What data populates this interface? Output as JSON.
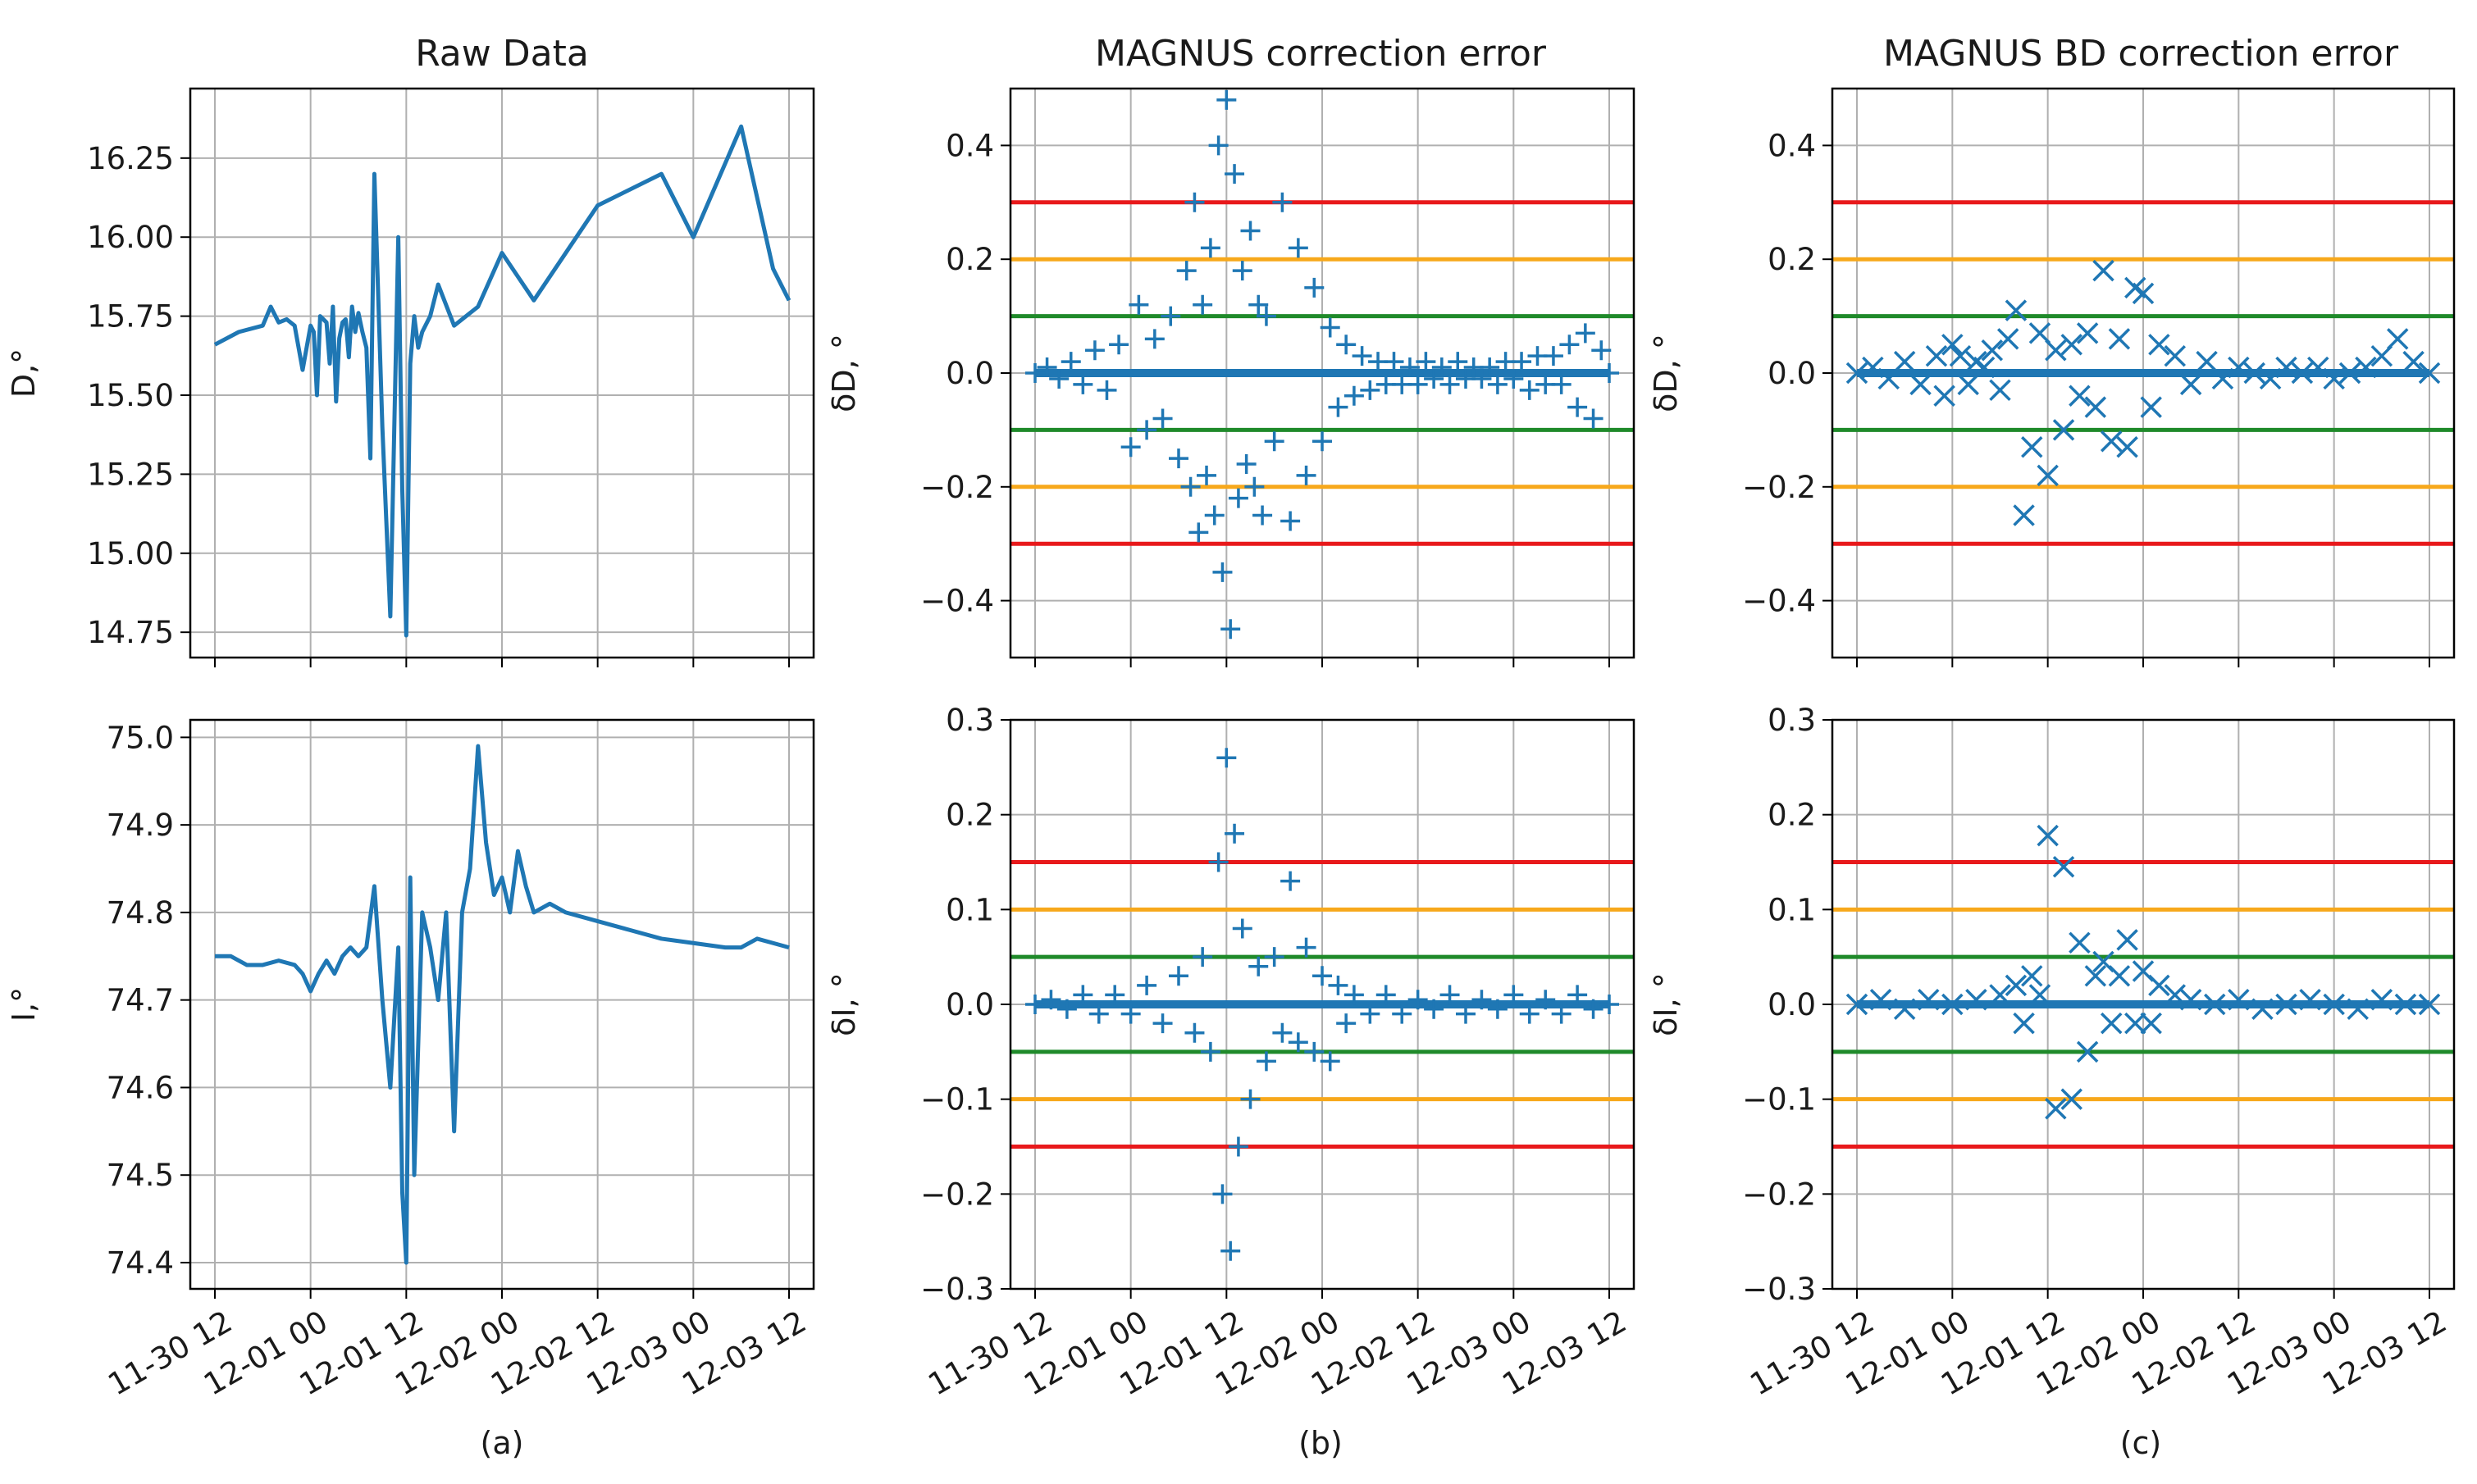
{
  "figure": {
    "time_tick_labels": [
      "11-30 12",
      "12-01 00",
      "12-01 12",
      "12-02 00",
      "12-02 12",
      "12-03 00",
      "12-03 12"
    ],
    "threshold_colors": {
      "red": "#e8191b",
      "orange": "#f7a81b",
      "green": "#1f8a2a"
    },
    "series_color": "#1f77b4",
    "grid_color": "#b0b0b0"
  },
  "chart_data": [
    {
      "id": "a1",
      "type": "line",
      "title": "Raw Data",
      "xlabel": "",
      "ylabel": "D,°",
      "ylim": [
        14.67,
        16.47
      ],
      "yticks": [
        14.75,
        15.0,
        15.25,
        15.5,
        15.75,
        16.0,
        16.25
      ],
      "ytick_labels": [
        "14.75",
        "15.00",
        "15.25",
        "15.50",
        "15.75",
        "16.00",
        "16.25"
      ],
      "series": [
        {
          "name": "D",
          "x": [
            0,
            3,
            6,
            7,
            8,
            9,
            10,
            11,
            11.5,
            12,
            12.4,
            12.8,
            13.2,
            13.6,
            14,
            14.4,
            14.8,
            15.2,
            15.6,
            16,
            16.4,
            16.8,
            17.2,
            17.6,
            18,
            18.5,
            19,
            19.5,
            20,
            21,
            22,
            23,
            23.5,
            24,
            24.5,
            25,
            25.5,
            26,
            27,
            28,
            30,
            33,
            36,
            40,
            48,
            56,
            60,
            66,
            70,
            72
          ],
          "y": [
            15.66,
            15.7,
            15.72,
            15.78,
            15.73,
            15.74,
            15.72,
            15.58,
            15.65,
            15.72,
            15.7,
            15.5,
            15.75,
            15.74,
            15.73,
            15.6,
            15.78,
            15.48,
            15.68,
            15.73,
            15.74,
            15.62,
            15.78,
            15.7,
            15.76,
            15.7,
            15.65,
            15.3,
            16.2,
            15.4,
            14.8,
            16.0,
            15.2,
            14.74,
            15.6,
            15.75,
            15.65,
            15.7,
            15.75,
            15.85,
            15.72,
            15.78,
            15.95,
            15.8,
            16.1,
            16.2,
            16.0,
            16.35,
            15.9,
            15.8
          ]
        }
      ]
    },
    {
      "id": "b1",
      "type": "scatter",
      "marker": "plus",
      "title": "MAGNUS correction error",
      "xlabel": "",
      "ylabel": "δD, °",
      "ylim": [
        -0.5,
        0.5
      ],
      "yticks": [
        -0.4,
        -0.2,
        0.0,
        0.2,
        0.4
      ],
      "ytick_labels": [
        "−0.4",
        "−0.2",
        "0.0",
        "0.2",
        "0.4"
      ],
      "thresholds": [
        0.3,
        0.2,
        0.1,
        -0.1,
        -0.2,
        -0.3
      ],
      "series": [
        {
          "name": "δD",
          "x": [
            0,
            1.5,
            3,
            4.5,
            6,
            7.5,
            9,
            10.5,
            12,
            13,
            14,
            15,
            16,
            17,
            18,
            19,
            19.5,
            20,
            20.5,
            21,
            21.5,
            22,
            22.5,
            23,
            23.5,
            24,
            24.5,
            25,
            25.5,
            26,
            26.5,
            27,
            27.5,
            28,
            28.5,
            29,
            30,
            31,
            32,
            33,
            34,
            35,
            36,
            37,
            38,
            39,
            40,
            41,
            42,
            43,
            44,
            45,
            46,
            47,
            48,
            49,
            50,
            51,
            52,
            53,
            54,
            55,
            56,
            57,
            58,
            59,
            60,
            61,
            62,
            63,
            64,
            65,
            66,
            67,
            68,
            69,
            70,
            71,
            72
          ],
          "y": [
            0.0,
            0.01,
            -0.01,
            0.02,
            -0.02,
            0.04,
            -0.03,
            0.05,
            -0.13,
            0.12,
            -0.1,
            0.06,
            -0.08,
            0.1,
            -0.15,
            0.18,
            -0.2,
            0.3,
            -0.28,
            0.12,
            -0.18,
            0.22,
            -0.25,
            0.4,
            -0.35,
            0.48,
            -0.45,
            0.35,
            -0.22,
            0.18,
            -0.16,
            0.25,
            -0.2,
            0.12,
            -0.25,
            0.1,
            -0.12,
            0.3,
            -0.26,
            0.22,
            -0.18,
            0.15,
            -0.12,
            0.08,
            -0.06,
            0.05,
            -0.04,
            0.03,
            -0.03,
            0.02,
            -0.02,
            0.02,
            -0.02,
            0.01,
            -0.02,
            0.02,
            -0.01,
            0.01,
            -0.02,
            0.02,
            -0.01,
            0.01,
            -0.01,
            0.01,
            -0.02,
            0.02,
            -0.01,
            0.02,
            -0.03,
            0.03,
            -0.02,
            0.03,
            -0.02,
            0.05,
            -0.06,
            0.07,
            -0.08,
            0.04,
            0.0
          ]
        }
      ]
    },
    {
      "id": "c1",
      "type": "scatter",
      "marker": "x",
      "title": "MAGNUS BD correction error",
      "xlabel": "",
      "ylabel": "δD, °",
      "ylim": [
        -0.5,
        0.5
      ],
      "yticks": [
        -0.4,
        -0.2,
        0.0,
        0.2,
        0.4
      ],
      "ytick_labels": [
        "−0.4",
        "−0.2",
        "0.0",
        "0.2",
        "0.4"
      ],
      "thresholds": [
        0.3,
        0.2,
        0.1,
        -0.1,
        -0.2,
        -0.3
      ],
      "series": [
        {
          "name": "δD",
          "x": [
            0,
            2,
            4,
            6,
            8,
            10,
            11,
            12,
            13,
            14,
            15,
            16,
            17,
            18,
            19,
            20,
            21,
            22,
            23,
            24,
            25,
            26,
            27,
            28,
            29,
            30,
            31,
            32,
            33,
            34,
            35,
            36,
            37,
            38,
            40,
            42,
            44,
            46,
            48,
            50,
            52,
            54,
            56,
            58,
            60,
            62,
            64,
            66,
            68,
            70,
            72
          ],
          "y": [
            0.0,
            0.01,
            -0.01,
            0.02,
            -0.02,
            0.03,
            -0.04,
            0.05,
            0.03,
            -0.02,
            0.02,
            0.01,
            0.04,
            -0.03,
            0.06,
            0.11,
            -0.25,
            -0.13,
            0.07,
            -0.18,
            0.04,
            -0.1,
            0.05,
            -0.04,
            0.07,
            -0.06,
            0.18,
            -0.12,
            0.06,
            -0.13,
            0.15,
            0.14,
            -0.06,
            0.05,
            0.03,
            -0.02,
            0.02,
            -0.01,
            0.01,
            0.0,
            -0.01,
            0.01,
            0.0,
            0.01,
            -0.01,
            0.0,
            0.01,
            0.03,
            0.06,
            0.02,
            0.0
          ]
        }
      ]
    },
    {
      "id": "a2",
      "type": "line",
      "title": "",
      "xlabel": "(a)",
      "ylabel": "I,°",
      "ylim": [
        74.37,
        75.02
      ],
      "yticks": [
        74.4,
        74.5,
        74.6,
        74.7,
        74.8,
        74.9,
        75.0
      ],
      "ytick_labels": [
        "74.4",
        "74.5",
        "74.6",
        "74.7",
        "74.8",
        "74.9",
        "75.0"
      ],
      "series": [
        {
          "name": "I",
          "x": [
            0,
            2,
            4,
            6,
            8,
            10,
            11,
            12,
            13,
            14,
            15,
            16,
            17,
            18,
            19,
            20,
            21,
            22,
            23,
            23.5,
            24,
            24.5,
            25,
            26,
            27,
            28,
            29,
            30,
            31,
            32,
            33,
            34,
            35,
            36,
            37,
            38,
            39,
            40,
            42,
            44,
            48,
            52,
            56,
            60,
            64,
            66,
            68,
            70,
            72
          ],
          "y": [
            74.75,
            74.75,
            74.74,
            74.74,
            74.745,
            74.74,
            74.73,
            74.71,
            74.73,
            74.745,
            74.73,
            74.75,
            74.76,
            74.75,
            74.76,
            74.83,
            74.7,
            74.6,
            74.76,
            74.48,
            74.4,
            74.84,
            74.5,
            74.8,
            74.76,
            74.7,
            74.8,
            74.55,
            74.8,
            74.85,
            74.99,
            74.88,
            74.82,
            74.84,
            74.8,
            74.87,
            74.83,
            74.8,
            74.81,
            74.8,
            74.79,
            74.78,
            74.77,
            74.765,
            74.76,
            74.76,
            74.77,
            74.765,
            74.76
          ]
        }
      ]
    },
    {
      "id": "b2",
      "type": "scatter",
      "marker": "plus",
      "title": "",
      "xlabel": "(b)",
      "ylabel": "δI, °",
      "ylim": [
        -0.3,
        0.3
      ],
      "yticks": [
        -0.3,
        -0.2,
        -0.1,
        0.0,
        0.1,
        0.2,
        0.3
      ],
      "ytick_labels": [
        "−0.3",
        "−0.2",
        "−0.1",
        "0.0",
        "0.1",
        "0.2",
        "0.3"
      ],
      "thresholds": [
        0.15,
        0.1,
        0.05,
        -0.05,
        -0.1,
        -0.15
      ],
      "series": [
        {
          "name": "δI",
          "x": [
            0,
            2,
            4,
            6,
            8,
            10,
            12,
            14,
            16,
            18,
            20,
            21,
            22,
            23,
            23.5,
            24,
            24.5,
            25,
            25.5,
            26,
            27,
            28,
            29,
            30,
            31,
            32,
            33,
            34,
            35,
            36,
            37,
            38,
            39,
            40,
            42,
            44,
            46,
            48,
            50,
            52,
            54,
            56,
            58,
            60,
            62,
            64,
            66,
            68,
            70,
            72
          ],
          "y": [
            0.0,
            0.005,
            -0.005,
            0.01,
            -0.01,
            0.01,
            -0.01,
            0.02,
            -0.02,
            0.03,
            -0.03,
            0.05,
            -0.05,
            0.15,
            -0.2,
            0.26,
            -0.26,
            0.18,
            -0.15,
            0.08,
            -0.1,
            0.04,
            -0.06,
            0.05,
            -0.03,
            0.13,
            -0.04,
            0.06,
            -0.05,
            0.03,
            -0.06,
            0.02,
            -0.02,
            0.01,
            -0.01,
            0.01,
            -0.01,
            0.005,
            -0.005,
            0.01,
            -0.01,
            0.005,
            -0.005,
            0.01,
            -0.01,
            0.005,
            -0.01,
            0.01,
            -0.005,
            0.0
          ]
        }
      ]
    },
    {
      "id": "c2",
      "type": "scatter",
      "marker": "x",
      "title": "",
      "xlabel": "(c)",
      "ylabel": "δI, °",
      "ylim": [
        -0.3,
        0.3
      ],
      "yticks": [
        -0.3,
        -0.2,
        -0.1,
        0.0,
        0.1,
        0.2,
        0.3
      ],
      "ytick_labels": [
        "−0.3",
        "−0.2",
        "−0.1",
        "0.0",
        "0.1",
        "0.2",
        "0.3"
      ],
      "thresholds": [
        0.15,
        0.1,
        0.05,
        -0.05,
        -0.1,
        -0.15
      ],
      "series": [
        {
          "name": "δI",
          "x": [
            0,
            3,
            6,
            9,
            12,
            15,
            18,
            20,
            21,
            22,
            23,
            24,
            25,
            26,
            27,
            28,
            29,
            30,
            31,
            32,
            33,
            34,
            35,
            36,
            37,
            38,
            40,
            42,
            45,
            48,
            51,
            54,
            57,
            60,
            63,
            66,
            69,
            72
          ],
          "y": [
            0.0,
            0.005,
            -0.005,
            0.005,
            0.0,
            0.005,
            0.01,
            0.02,
            -0.02,
            0.03,
            0.01,
            0.178,
            -0.11,
            0.145,
            -0.1,
            0.065,
            -0.05,
            0.03,
            0.045,
            -0.02,
            0.03,
            0.068,
            -0.02,
            0.035,
            -0.02,
            0.02,
            0.01,
            0.005,
            0.0,
            0.005,
            -0.005,
            0.0,
            0.005,
            0.0,
            -0.005,
            0.005,
            0.0,
            0.0
          ]
        }
      ]
    }
  ]
}
